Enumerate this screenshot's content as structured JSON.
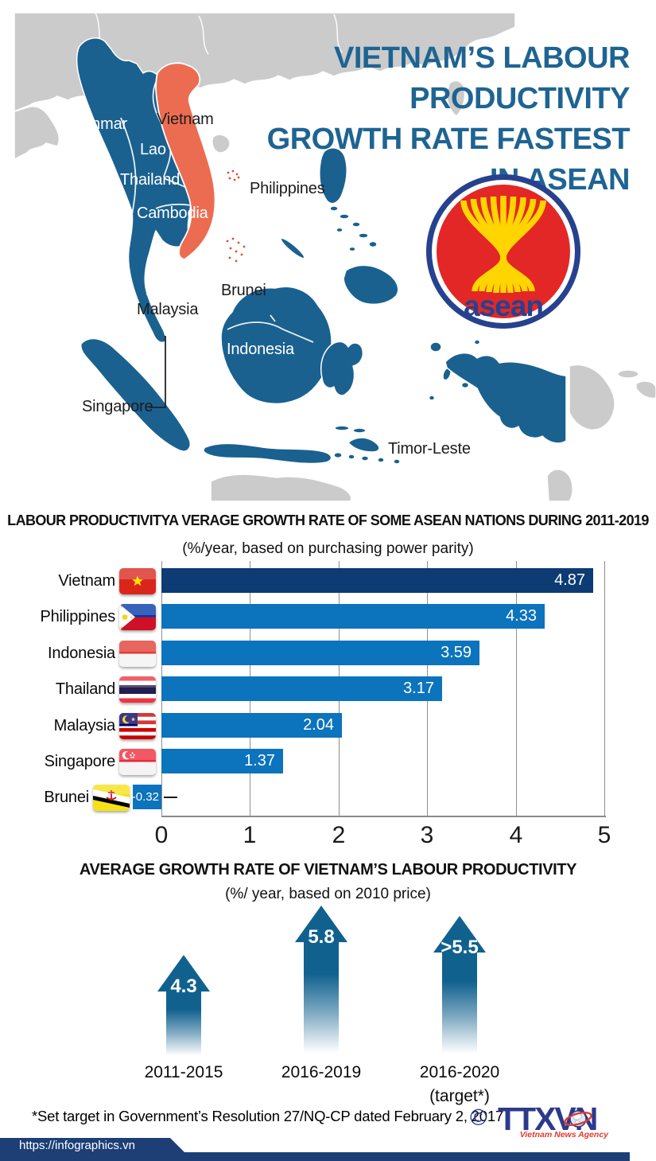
{
  "header": {
    "title_lines": [
      "VIETNAM’S LABOUR PRODUCTIVITY",
      "GROWTH RATE FASTEST",
      "IN ASEAN"
    ]
  },
  "map": {
    "labels": {
      "myanmar": "Myanmar",
      "vietnam": "Vietnam",
      "lao": "Lao",
      "thailand": "Thailand",
      "cambodia": "Cambodia",
      "philippines": "Philippines",
      "brunei": "Brunei",
      "malaysia": "Malaysia",
      "indonesia": "Indonesia",
      "singapore": "Singapore",
      "timor_leste": "Timor-Leste"
    },
    "asean_logo_text": "asean",
    "colors": {
      "asean_member": "#1a6190",
      "vietnam_highlight": "#ec6c52",
      "non_member": "#cbcbcb"
    }
  },
  "bar_chart": {
    "title": "LABOUR PRODUCTIVITYA VERAGE GROWTH RATE OF SOME ASEAN NATIONS  DURING  2011-2019",
    "subtitle": "(%/year, based on purchasing power parity)",
    "rows": [
      {
        "label": "Vietnam",
        "value": "4.87"
      },
      {
        "label": "Philippines",
        "value": "4.33"
      },
      {
        "label": "Indonesia",
        "value": "3.59"
      },
      {
        "label": "Thailand",
        "value": "3.17"
      },
      {
        "label": "Malaysia",
        "value": "2.04"
      },
      {
        "label": "Singapore",
        "value": "1.37"
      },
      {
        "label": "Brunei",
        "value": "-0.32"
      }
    ],
    "x_ticks": [
      "0",
      "1",
      "2",
      "3",
      "4",
      "5"
    ]
  },
  "arrow_chart": {
    "title": "AVERAGE GROWTH RATE OF VIETNAM’S LABOUR PRODUCTIVITY",
    "subtitle": "(%/ year, based on 2010 price)",
    "items": [
      {
        "value_label": "4.3",
        "period": "2011-2015",
        "period2": ""
      },
      {
        "value_label": "5.8",
        "period": "2016-2019",
        "period2": ""
      },
      {
        "value_label": ">5.5",
        "period": "2016-2020",
        "period2": "(target*)"
      }
    ]
  },
  "chart_data": [
    {
      "type": "bar",
      "orientation": "horizontal",
      "title": "LABOUR PRODUCTIVITYA VERAGE GROWTH RATE OF SOME ASEAN NATIONS DURING 2011-2019",
      "subtitle": "(%/year, based on purchasing power parity)",
      "categories": [
        "Vietnam",
        "Philippines",
        "Indonesia",
        "Thailand",
        "Malaysia",
        "Singapore",
        "Brunei"
      ],
      "values": [
        4.87,
        4.33,
        3.59,
        3.17,
        2.04,
        1.37,
        -0.32
      ],
      "xlim": [
        0,
        5
      ],
      "xticks": [
        0,
        1,
        2,
        3,
        4,
        5
      ],
      "grid": "vertical",
      "bar_colors": [
        "#0d3b73",
        "#0c73bd",
        "#0c73bd",
        "#0c73bd",
        "#0c73bd",
        "#0c73bd",
        "#0c73bd"
      ],
      "value_label_color": "#ffffff"
    },
    {
      "type": "bar",
      "variant": "arrow-pictogram",
      "title": "AVERAGE GROWTH RATE OF VIETNAM'S LABOUR PRODUCTIVITY",
      "subtitle": "(%/ year, based on 2010 price)",
      "categories": [
        "2011-2015",
        "2016-2019",
        "2016-2020 (target*)"
      ],
      "values": [
        4.3,
        5.8,
        5.5
      ],
      "value_labels": [
        "4.3",
        "5.8",
        ">5.5"
      ],
      "color": "#11618f"
    }
  ],
  "footer": {
    "note": "*Set target in Government’s Resolution 27/NQ-CP dated February 2, 2017",
    "copyright_symbol": "©",
    "agency_logo": "TTXVN",
    "agency_caption": "Vietnam News Agency",
    "url": "https://infographics.vn"
  }
}
